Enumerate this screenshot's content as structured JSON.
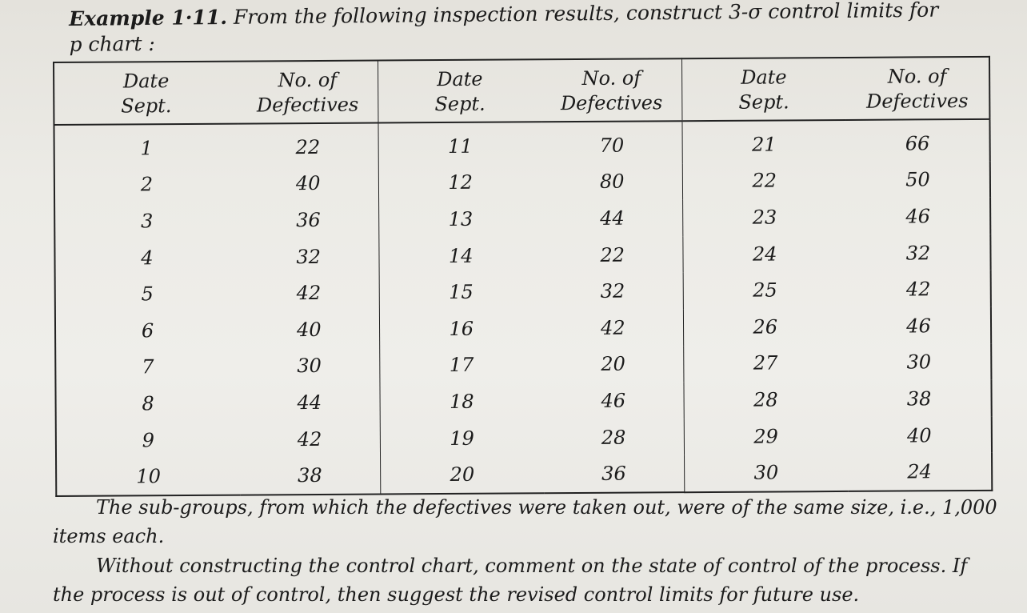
{
  "heading": {
    "label": "Example 1·11.",
    "text": "From the following inspection results, construct 3-σ control limits for",
    "line2": "p chart :"
  },
  "table": {
    "headers": [
      [
        "Date",
        "Sept."
      ],
      [
        "No. of",
        "Defectives"
      ],
      [
        "Date",
        "Sept."
      ],
      [
        "No. of",
        "Defectives"
      ],
      [
        "Date",
        "Sept."
      ],
      [
        "No. of",
        "Defectives"
      ]
    ],
    "rows": [
      [
        "1",
        "22",
        "11",
        "70",
        "21",
        "66"
      ],
      [
        "2",
        "40",
        "12",
        "80",
        "22",
        "50"
      ],
      [
        "3",
        "36",
        "13",
        "44",
        "23",
        "46"
      ],
      [
        "4",
        "32",
        "14",
        "22",
        "24",
        "32"
      ],
      [
        "5",
        "42",
        "15",
        "32",
        "25",
        "42"
      ],
      [
        "6",
        "40",
        "16",
        "42",
        "26",
        "46"
      ],
      [
        "7",
        "30",
        "17",
        "20",
        "27",
        "30"
      ],
      [
        "8",
        "44",
        "18",
        "46",
        "28",
        "38"
      ],
      [
        "9",
        "42",
        "19",
        "28",
        "29",
        "40"
      ],
      [
        "10",
        "38",
        "20",
        "36",
        "30",
        "24"
      ]
    ]
  },
  "para1": "The sub-groups, from which the defectives were taken out, were of the same size, i.e., 1,000 items each.",
  "para2": "Without constructing the control chart, comment on the state of control of the process. If the process is out of control, then suggest the revised control limits for future use."
}
